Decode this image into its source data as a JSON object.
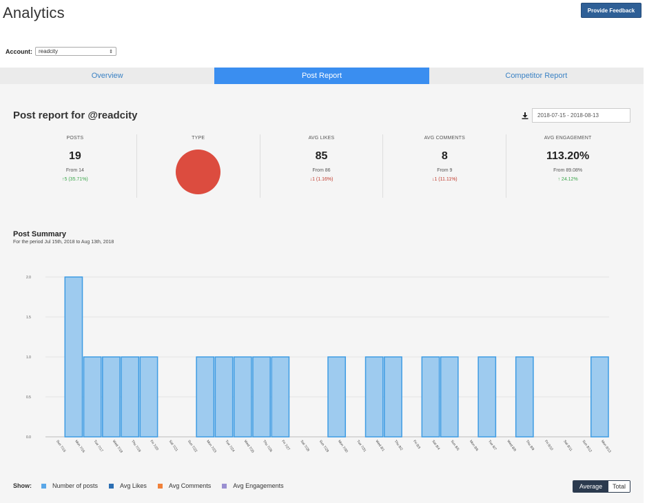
{
  "header": {
    "title": "Analytics",
    "feedback_label": "Provide Feedback"
  },
  "account": {
    "label": "Account:",
    "selected": "readcity"
  },
  "tabs": [
    {
      "label": "Overview",
      "active": false
    },
    {
      "label": "Post Report",
      "active": true
    },
    {
      "label": "Competitor Report",
      "active": false
    }
  ],
  "report": {
    "title": "Post report for @readcity",
    "date_range": "2018-07-15 - 2018-08-13",
    "download_icon": "download-icon"
  },
  "stats": {
    "posts": {
      "label": "POSTS",
      "value": "19",
      "from": "From 14",
      "change": "↑5 (35.71%)",
      "direction": "up"
    },
    "type": {
      "label": "TYPE",
      "color": "#dc4c3f"
    },
    "avg_likes": {
      "label": "AVG LIKES",
      "value": "85",
      "from": "From 86",
      "change": "↓1 (1.16%)",
      "direction": "down"
    },
    "avg_comments": {
      "label": "AVG COMMENTS",
      "value": "8",
      "from": "From 9",
      "change": "↓1 (11.11%)",
      "direction": "down"
    },
    "avg_engagement": {
      "label": "AVG ENGAGEMENT",
      "value": "113.20%",
      "from": "From 89.08%",
      "change": "↑ 24.12%",
      "direction": "up"
    }
  },
  "summary": {
    "title": "Post Summary",
    "subtitle": "For the period Jul 15th, 2018 to Aug 13th, 2018"
  },
  "chart_data": {
    "type": "bar",
    "categories": [
      "Sun 7/15",
      "Mon 7/16",
      "Tue 7/17",
      "Wed 7/18",
      "Thu 7/19",
      "Fri 7/20",
      "Sat 7/21",
      "Sun 7/22",
      "Mon 7/23",
      "Tue 7/24",
      "Wed 7/25",
      "Thu 7/26",
      "Fri 7/27",
      "Sat 7/28",
      "Sun 7/29",
      "Mon 7/30",
      "Tue 7/31",
      "Wed 8/1",
      "Thu 8/2",
      "Fri 8/3",
      "Sat 8/4",
      "Sun 8/5",
      "Mon 8/6",
      "Tue 8/7",
      "Wed 8/8",
      "Thu 8/9",
      "Fri 8/10",
      "Sat 8/11",
      "Sun 8/12",
      "Mon 8/13"
    ],
    "series": [
      {
        "name": "Number of posts",
        "values": [
          0,
          2,
          1,
          1,
          1,
          1,
          0,
          0,
          1,
          1,
          1,
          1,
          1,
          0,
          0,
          1,
          0,
          1,
          1,
          0,
          1,
          1,
          0,
          1,
          0,
          1,
          0,
          0,
          0,
          1
        ]
      }
    ],
    "yticks": [
      "0.0",
      "0.5",
      "1.0",
      "1.5",
      "2.0"
    ],
    "ylim": [
      0,
      2
    ],
    "grid": true,
    "bar_fill": "#9ecbef",
    "bar_stroke": "#3d9be3"
  },
  "legend": {
    "show_label": "Show:",
    "items": [
      {
        "label": "Number of posts",
        "color": "#5aa7e8"
      },
      {
        "label": "Avg Likes",
        "color": "#2c6fb3"
      },
      {
        "label": "Avg Comments",
        "color": "#f0813a"
      },
      {
        "label": "Avg Engagements",
        "color": "#9a8fd1"
      }
    ]
  },
  "toggle": {
    "average_label": "Average",
    "total_label": "Total",
    "selected": "Average"
  }
}
